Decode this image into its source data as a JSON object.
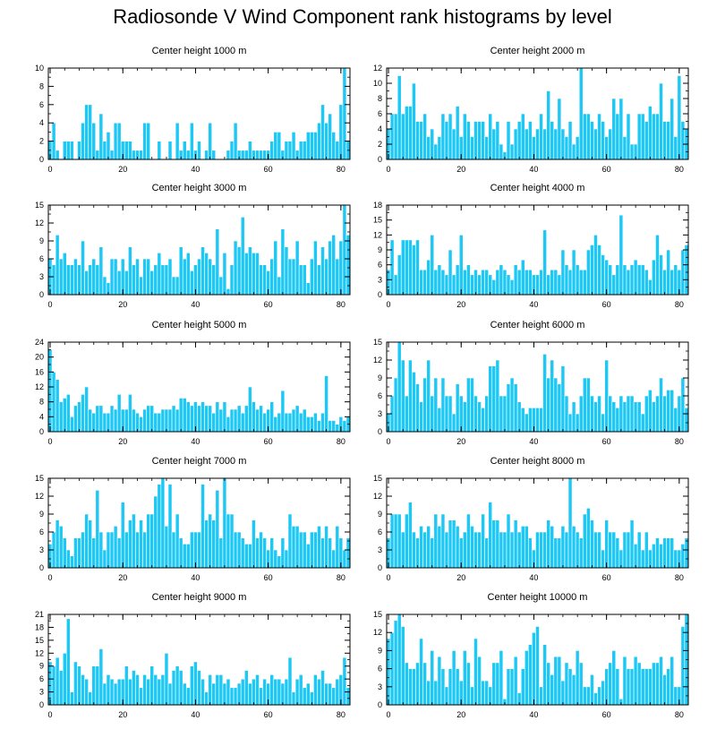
{
  "title": "Radiosonde V Wind Component rank histograms by level",
  "colors": {
    "bar": "#1ec8f5",
    "bar_edge": "#ffffff",
    "axis": "#000000"
  },
  "chart_data": [
    {
      "type": "bar",
      "title": "Center height 1000 m",
      "ylim": [
        0,
        10
      ],
      "yticks": [
        0,
        2,
        4,
        6,
        8,
        10
      ],
      "xlim": [
        -0.5,
        82.5
      ],
      "xticks": [
        0,
        20,
        40,
        60,
        80
      ],
      "values": [
        2,
        4,
        1,
        0,
        2,
        2,
        2,
        0,
        2,
        4,
        6,
        6,
        4,
        1,
        5,
        2,
        3,
        1,
        4,
        4,
        2,
        2,
        2,
        1,
        1,
        1,
        4,
        4,
        0,
        0,
        2,
        0,
        0,
        2,
        0,
        4,
        1,
        2,
        1,
        4,
        1,
        2,
        0,
        1,
        4,
        1,
        0,
        0,
        0,
        1,
        2,
        4,
        1,
        1,
        1,
        2,
        1,
        1,
        1,
        1,
        1,
        2,
        3,
        3,
        1,
        2,
        2,
        3,
        1,
        2,
        2,
        3,
        3,
        3,
        4,
        6,
        4,
        5,
        3,
        2,
        6,
        10,
        2
      ]
    },
    {
      "type": "bar",
      "title": "Center height 2000 m",
      "ylim": [
        0,
        12
      ],
      "yticks": [
        0,
        2,
        4,
        6,
        8,
        10,
        12
      ],
      "xlim": [
        -0.5,
        82.5
      ],
      "xticks": [
        0,
        20,
        40,
        60,
        80
      ],
      "values": [
        4,
        6,
        6,
        11,
        6,
        7,
        7,
        10,
        5,
        5,
        6,
        3,
        4,
        2,
        3,
        6,
        5,
        6,
        4,
        7,
        3,
        6,
        5,
        3,
        5,
        5,
        5,
        3,
        6,
        4,
        5,
        2,
        1,
        5,
        2,
        4,
        5,
        6,
        4,
        5,
        3,
        4,
        6,
        4,
        9,
        5,
        4,
        8,
        4,
        3,
        5,
        2,
        3,
        12,
        6,
        6,
        5,
        4,
        6,
        5,
        3,
        4,
        8,
        6,
        8,
        3,
        6,
        2,
        2,
        6,
        6,
        5,
        7,
        6,
        6,
        10,
        5,
        5,
        8,
        3,
        11,
        5,
        4
      ]
    },
    {
      "type": "bar",
      "title": "Center height 3000 m",
      "ylim": [
        0,
        15
      ],
      "yticks": [
        0,
        3,
        6,
        9,
        12,
        15
      ],
      "xlim": [
        -0.5,
        82.5
      ],
      "xticks": [
        0,
        20,
        40,
        60,
        80
      ],
      "values": [
        6,
        5,
        10,
        6,
        7,
        5,
        5,
        6,
        5,
        9,
        4,
        5,
        6,
        5,
        8,
        3,
        2,
        6,
        6,
        4,
        6,
        4,
        8,
        5,
        6,
        3,
        6,
        6,
        4,
        5,
        7,
        5,
        5,
        6,
        3,
        3,
        8,
        6,
        7,
        4,
        5,
        6,
        8,
        7,
        6,
        5,
        11,
        3,
        7,
        1,
        5,
        9,
        8,
        13,
        7,
        8,
        7,
        7,
        5,
        5,
        4,
        6,
        9,
        3,
        11,
        8,
        6,
        6,
        9,
        5,
        5,
        2,
        6,
        9,
        5,
        8,
        6,
        9,
        10,
        6,
        9,
        15,
        10
      ]
    },
    {
      "type": "bar",
      "title": "Center height 4000 m",
      "ylim": [
        0,
        18
      ],
      "yticks": [
        0,
        3,
        6,
        9,
        12,
        15,
        18
      ],
      "xlim": [
        -0.5,
        82.5
      ],
      "xticks": [
        0,
        20,
        40,
        60,
        80
      ],
      "values": [
        5,
        11,
        4,
        8,
        11,
        11,
        11,
        10,
        11,
        5,
        5,
        7,
        12,
        5,
        6,
        5,
        4,
        9,
        4,
        6,
        12,
        5,
        6,
        4,
        5,
        4,
        5,
        5,
        4,
        3,
        5,
        6,
        5,
        4,
        3,
        6,
        5,
        7,
        5,
        5,
        4,
        4,
        5,
        13,
        4,
        5,
        5,
        4,
        9,
        6,
        5,
        9,
        6,
        5,
        5,
        9,
        10,
        12,
        10,
        8,
        7,
        6,
        4,
        6,
        16,
        6,
        5,
        6,
        7,
        6,
        6,
        5,
        3,
        7,
        12,
        8,
        5,
        9,
        5,
        6,
        5,
        9,
        10
      ]
    },
    {
      "type": "bar",
      "title": "Center height 5000 m",
      "ylim": [
        0,
        24
      ],
      "yticks": [
        0,
        4,
        8,
        12,
        16,
        20,
        24
      ],
      "xlim": [
        -0.5,
        82.5
      ],
      "xticks": [
        0,
        20,
        40,
        60,
        80
      ],
      "values": [
        22,
        16,
        14,
        8,
        9,
        10,
        4,
        7,
        8,
        10,
        12,
        6,
        5,
        7,
        7,
        5,
        5,
        7,
        6,
        10,
        6,
        6,
        10,
        6,
        5,
        4,
        6,
        7,
        7,
        5,
        5,
        6,
        6,
        6,
        7,
        6,
        9,
        9,
        8,
        7,
        8,
        7,
        8,
        7,
        7,
        5,
        8,
        6,
        8,
        4,
        6,
        6,
        7,
        5,
        7,
        12,
        8,
        6,
        7,
        5,
        6,
        8,
        4,
        5,
        11,
        5,
        5,
        6,
        7,
        5,
        6,
        4,
        4,
        5,
        3,
        5,
        15,
        3,
        3,
        2,
        4,
        3,
        4
      ]
    },
    {
      "type": "bar",
      "title": "Center height 6000 m",
      "ylim": [
        0,
        15
      ],
      "yticks": [
        0,
        3,
        6,
        9,
        12,
        15
      ],
      "xlim": [
        -0.5,
        82.5
      ],
      "xticks": [
        0,
        20,
        40,
        60,
        80
      ],
      "values": [
        3,
        6,
        9,
        15,
        12,
        6,
        12,
        10,
        8,
        5,
        9,
        12,
        6,
        9,
        4,
        9,
        6,
        6,
        3,
        8,
        6,
        5,
        9,
        9,
        6,
        5,
        4,
        6,
        11,
        11,
        12,
        6,
        6,
        8,
        9,
        8,
        5,
        4,
        3,
        4,
        4,
        4,
        4,
        13,
        9,
        12,
        9,
        8,
        11,
        6,
        3,
        5,
        3,
        6,
        9,
        9,
        6,
        5,
        6,
        3,
        12,
        6,
        5,
        4,
        6,
        5,
        6,
        6,
        5,
        5,
        3,
        6,
        7,
        5,
        6,
        9,
        6,
        7,
        7,
        4,
        6,
        9,
        4
      ]
    },
    {
      "type": "bar",
      "title": "Center height 7000 m",
      "ylim": [
        0,
        15
      ],
      "yticks": [
        0,
        3,
        6,
        9,
        12,
        15
      ],
      "xlim": [
        -0.5,
        82.5
      ],
      "xticks": [
        0,
        20,
        40,
        60,
        80
      ],
      "values": [
        4,
        6,
        8,
        7,
        5,
        3,
        2,
        5,
        5,
        6,
        9,
        8,
        5,
        13,
        6,
        3,
        6,
        6,
        7,
        5,
        11,
        6,
        8,
        9,
        6,
        8,
        6,
        9,
        9,
        12,
        14,
        15,
        7,
        14,
        6,
        9,
        5,
        4,
        4,
        6,
        6,
        6,
        14,
        8,
        9,
        8,
        13,
        5,
        15,
        9,
        9,
        6,
        6,
        5,
        4,
        4,
        8,
        5,
        6,
        5,
        3,
        5,
        3,
        2,
        5,
        3,
        9,
        7,
        7,
        6,
        6,
        4,
        6,
        6,
        7,
        5,
        7,
        5,
        3,
        7,
        5,
        3,
        5
      ]
    },
    {
      "type": "bar",
      "title": "Center height 8000 m",
      "ylim": [
        0,
        15
      ],
      "yticks": [
        0,
        3,
        6,
        9,
        12,
        15
      ],
      "xlim": [
        -0.5,
        82.5
      ],
      "xticks": [
        0,
        20,
        40,
        60,
        80
      ],
      "values": [
        5,
        9,
        9,
        9,
        6,
        9,
        11,
        6,
        5,
        7,
        6,
        7,
        5,
        9,
        7,
        9,
        6,
        8,
        8,
        7,
        5,
        6,
        9,
        7,
        6,
        6,
        9,
        5,
        11,
        8,
        8,
        6,
        6,
        9,
        6,
        8,
        6,
        7,
        7,
        5,
        3,
        6,
        6,
        6,
        8,
        7,
        5,
        5,
        7,
        6,
        15,
        7,
        6,
        5,
        9,
        10,
        8,
        6,
        6,
        3,
        8,
        6,
        6,
        5,
        3,
        6,
        6,
        8,
        4,
        6,
        3,
        6,
        3,
        4,
        5,
        4,
        5,
        5,
        5,
        3,
        3,
        4,
        5
      ]
    },
    {
      "type": "bar",
      "title": "Center height 9000 m",
      "ylim": [
        0,
        21
      ],
      "yticks": [
        0,
        3,
        6,
        9,
        12,
        15,
        18,
        21
      ],
      "xlim": [
        -0.5,
        82.5
      ],
      "xticks": [
        0,
        20,
        40,
        60,
        80
      ],
      "values": [
        10,
        9,
        11,
        8,
        12,
        20,
        3,
        10,
        9,
        7,
        6,
        3,
        9,
        9,
        13,
        5,
        7,
        6,
        5,
        6,
        6,
        9,
        6,
        8,
        7,
        4,
        7,
        6,
        9,
        7,
        6,
        7,
        12,
        5,
        8,
        9,
        8,
        5,
        4,
        9,
        10,
        8,
        6,
        3,
        7,
        5,
        7,
        7,
        5,
        6,
        4,
        4,
        5,
        6,
        8,
        5,
        6,
        7,
        4,
        6,
        5,
        7,
        6,
        6,
        5,
        6,
        11,
        3,
        6,
        7,
        4,
        5,
        3,
        7,
        6,
        8,
        5,
        5,
        4,
        6,
        7,
        11,
        4
      ]
    },
    {
      "type": "bar",
      "title": "Center height 10000 m",
      "ylim": [
        0,
        15
      ],
      "yticks": [
        0,
        3,
        6,
        9,
        12,
        15
      ],
      "xlim": [
        -0.5,
        82.5
      ],
      "xticks": [
        0,
        20,
        40,
        60,
        80
      ],
      "values": [
        11,
        12,
        14,
        15,
        13,
        7,
        6,
        6,
        7,
        11,
        7,
        4,
        9,
        4,
        8,
        6,
        3,
        6,
        9,
        6,
        4,
        9,
        7,
        3,
        11,
        8,
        4,
        4,
        3,
        7,
        7,
        9,
        1,
        6,
        6,
        8,
        2,
        6,
        9,
        10,
        12,
        13,
        3,
        10,
        7,
        5,
        8,
        8,
        4,
        7,
        6,
        5,
        9,
        7,
        3,
        3,
        5,
        2,
        3,
        4,
        6,
        7,
        9,
        6,
        1,
        8,
        6,
        6,
        8,
        7,
        6,
        6,
        6,
        7,
        7,
        8,
        5,
        6,
        8,
        3,
        3,
        13,
        15
      ]
    }
  ]
}
